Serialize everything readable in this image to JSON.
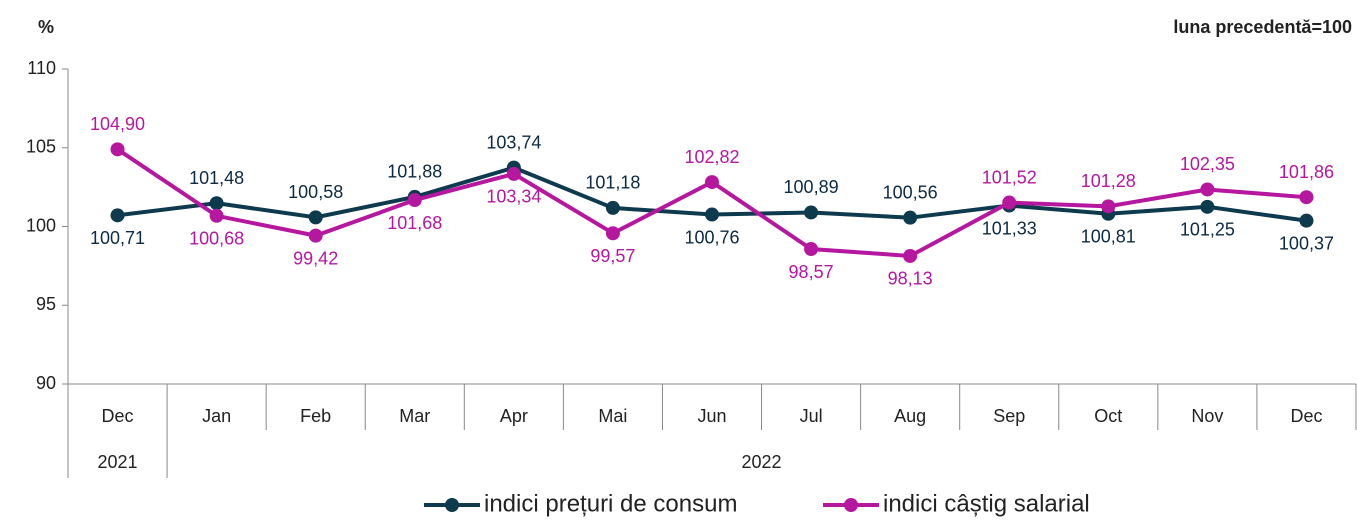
{
  "chart_data": {
    "type": "line",
    "y_label": "%",
    "annotation": "luna precedentă=100",
    "categories": [
      "Dec",
      "Jan",
      "Feb",
      "Mar",
      "Apr",
      "Mai",
      "Jun",
      "Jul",
      "Aug",
      "Sep",
      "Oct",
      "Nov",
      "Dec"
    ],
    "year_labels": [
      "2021",
      "2022"
    ],
    "series": [
      {
        "name": "indici prețuri de consum",
        "color": "#0e3a4e",
        "values": [
          100.71,
          101.48,
          100.58,
          101.88,
          103.74,
          101.18,
          100.76,
          100.89,
          100.56,
          101.33,
          100.81,
          101.25,
          100.37
        ],
        "value_labels": [
          "100,71",
          "101,48",
          "100,58",
          "101,88",
          "103,74",
          "101,18",
          "100,76",
          "100,89",
          "100,56",
          "101,33",
          "100,81",
          "101,25",
          "100,37"
        ]
      },
      {
        "name": "indici câștig salarial",
        "color": "#b5179e",
        "values": [
          104.9,
          100.68,
          99.42,
          101.68,
          103.34,
          99.57,
          102.82,
          98.57,
          98.13,
          101.52,
          101.28,
          102.35,
          101.86
        ],
        "value_labels": [
          "104,90",
          "100,68",
          "99,42",
          "101,68",
          "103,34",
          "99,57",
          "102,82",
          "98,57",
          "98,13",
          "101,52",
          "101,28",
          "102,35",
          "101,86"
        ]
      }
    ],
    "ylim": [
      90,
      110
    ],
    "yticks": [
      90,
      95,
      100,
      105,
      110
    ],
    "grid": false
  }
}
